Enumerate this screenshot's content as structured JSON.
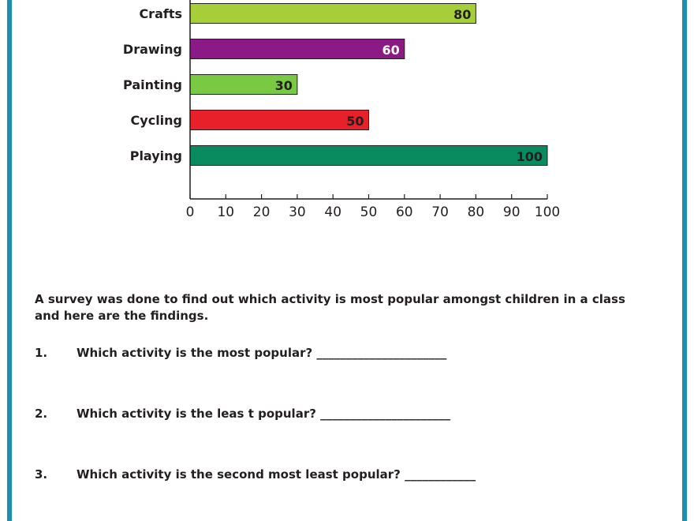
{
  "chart_data": {
    "type": "bar",
    "orientation": "horizontal",
    "categories": [
      "Crafts",
      "Drawing",
      "Painting",
      "Cycling",
      "Playing"
    ],
    "values": [
      80,
      60,
      30,
      50,
      100
    ],
    "bar_colors": [
      "#a6ce39",
      "#8b1a87",
      "#7ac943",
      "#e8202a",
      "#0a8a5f"
    ],
    "value_label_colors": [
      "#231f20",
      "#ffffff",
      "#231f20",
      "#231f20",
      "#231f20"
    ],
    "xlim": [
      0,
      100
    ],
    "x_ticks": [
      0,
      10,
      20,
      30,
      40,
      50,
      60,
      70,
      80,
      90,
      100
    ],
    "title": "",
    "xlabel": "",
    "ylabel": ""
  },
  "worksheet": {
    "intro": "A survey was done to find out which activity is most popular amongst children in a class and here are the findings.",
    "questions": [
      {
        "number": "1.",
        "text": "Which activity is the most popular? ______________________"
      },
      {
        "number": "2.",
        "text": "Which activity is the leas t popular? ______________________"
      },
      {
        "number": "3.",
        "text": "Which activity is the second most least popular? ____________"
      }
    ]
  },
  "colors": {
    "frame": "#1a8fb0"
  }
}
